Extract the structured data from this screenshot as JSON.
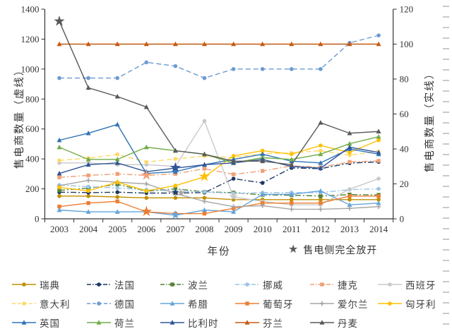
{
  "axes": {
    "x": {
      "label": "年份",
      "ticks": [
        2003,
        2004,
        2005,
        2006,
        2007,
        2008,
        2009,
        2010,
        2011,
        2012,
        2013,
        2014
      ]
    },
    "y_left": {
      "label": "售电商数量（虚线）",
      "min": 0,
      "max": 1400,
      "ticks": [
        0,
        200,
        400,
        600,
        800,
        1000,
        1200,
        1400
      ]
    },
    "y_right": {
      "label": "售电商数量（实线）",
      "min": 0,
      "max": 120,
      "ticks": [
        0,
        20,
        40,
        60,
        80,
        100,
        120
      ]
    }
  },
  "star_legend": {
    "symbol": "★",
    "label": "售电侧完全放开",
    "color": "#595959"
  },
  "chart_data": {
    "type": "line",
    "x": [
      2003,
      2004,
      2005,
      2006,
      2007,
      2008,
      2009,
      2010,
      2011,
      2012,
      2013,
      2014
    ],
    "note": "dashed series read on left axis (0-1400), solid series on right axis (0-120); stars mark year of full retail market opening",
    "series": [
      {
        "name": "瑞典",
        "color": "#BF8F00",
        "axis": "right",
        "line": "solid",
        "marker": "circle",
        "values": [
          13,
          13,
          12.5,
          12,
          12,
          12,
          11,
          11,
          11,
          11,
          11,
          11
        ]
      },
      {
        "name": "法国",
        "color": "#1F3864",
        "axis": "left",
        "line": "dashdot",
        "marker": "circle",
        "values": [
          178,
          175,
          178,
          172,
          172,
          175,
          268,
          240,
          340,
          335,
          372,
          380
        ],
        "star_year": 2007,
        "star_size": 14
      },
      {
        "name": "波兰",
        "color": "#538135",
        "axis": "left",
        "line": "dashdot",
        "marker": "square",
        "values": [
          190,
          205,
          230,
          185,
          200,
          180,
          175,
          160,
          158,
          152,
          162,
          160
        ]
      },
      {
        "name": "挪威",
        "color": "#9DC3E6",
        "axis": "left",
        "line": "dashdot",
        "marker": "circle",
        "values": [
          225,
          215,
          205,
          195,
          185,
          180,
          170,
          175,
          175,
          175,
          195,
          200
        ]
      },
      {
        "name": "捷克",
        "color": "#F1A077",
        "axis": "left",
        "line": "dashdot",
        "marker": "square",
        "values": [
          277,
          290,
          300,
          290,
          300,
          335,
          297,
          320,
          354,
          344,
          380,
          387
        ],
        "star_year": 2006,
        "star_size": 20
      },
      {
        "name": "西班牙",
        "color": "#C9C9C9",
        "axis": "right",
        "line": "solid",
        "marker": "circle",
        "values": [
          32,
          32,
          31,
          31,
          30,
          56,
          12.5,
          10,
          8,
          8,
          17,
          23
        ],
        "star_year": 2009,
        "star_size": 16
      },
      {
        "name": "意大利",
        "color": "#FFD966",
        "axis": "left",
        "line": "dash",
        "marker": "circle",
        "values": [
          390,
          405,
          430,
          380,
          400,
          420,
          410,
          435,
          440,
          455,
          425,
          450
        ]
      },
      {
        "name": "德国",
        "color": "#6B9BD2",
        "axis": "left",
        "line": "dash",
        "marker": "circle",
        "values": [
          940,
          940,
          940,
          1045,
          1020,
          940,
          1000,
          1000,
          1000,
          1000,
          1175,
          1225
        ]
      },
      {
        "name": "希腊",
        "color": "#63A5DC",
        "axis": "right",
        "line": "solid",
        "marker": "triangle",
        "values": [
          5,
          4,
          4,
          4,
          2,
          5,
          4,
          14,
          14,
          16,
          8,
          9
        ],
        "star_year": 2007,
        "star_size": 16
      },
      {
        "name": "葡萄牙",
        "color": "#ED7D31",
        "axis": "right",
        "line": "solid",
        "marker": "square",
        "values": [
          7,
          9,
          10,
          4,
          3,
          3,
          6,
          9,
          9,
          9,
          13,
          13
        ],
        "star_year": 2006,
        "star_size": 20
      },
      {
        "name": "爱尔兰",
        "color": "#A6A6A6",
        "axis": "right",
        "line": "solid",
        "marker": "plus",
        "values": [
          19,
          22,
          21,
          20,
          14.5,
          10,
          7,
          7.5,
          5.5,
          5.5,
          6,
          7
        ],
        "star_year": 2007,
        "star_size": 14,
        "star_dx": 8
      },
      {
        "name": "匈牙利",
        "color": "#FFC000",
        "axis": "right",
        "line": "solid",
        "marker": "circle",
        "values": [
          18,
          16,
          21,
          16,
          19,
          24,
          36,
          39,
          37,
          42,
          38,
          45
        ],
        "star_year": 2008,
        "star_size": 20
      },
      {
        "name": "英国",
        "color": "#2E74B5",
        "axis": "right",
        "line": "solid",
        "marker": "triangle",
        "values": [
          45,
          49,
          54,
          26,
          27,
          31,
          34,
          37,
          33,
          32,
          40,
          37
        ]
      },
      {
        "name": "荷兰",
        "color": "#70AD47",
        "axis": "right",
        "line": "solid",
        "marker": "triangle",
        "values": [
          41,
          34,
          34,
          41,
          39,
          37,
          32,
          35,
          34,
          37,
          43,
          47
        ]
      },
      {
        "name": "比利时",
        "color": "#2F5597",
        "axis": "right",
        "line": "solid",
        "marker": "triangle",
        "values": [
          26,
          31,
          32,
          27,
          29,
          31,
          32,
          34,
          30,
          29,
          41,
          38
        ],
        "star_year": 2007,
        "star_size": 20
      },
      {
        "name": "芬兰",
        "color": "#C55A11",
        "axis": "right",
        "line": "solid",
        "marker": "triangle",
        "values": [
          100,
          100,
          100,
          100,
          100,
          100,
          100,
          100,
          100,
          100,
          100,
          100
        ]
      },
      {
        "name": "丹麦",
        "color": "#595959",
        "axis": "right",
        "line": "solid",
        "marker": "triangle",
        "values": [
          113,
          75,
          70,
          64,
          39,
          37,
          33,
          33,
          31,
          55,
          49,
          50
        ],
        "star_year": 2003,
        "star_size": 20
      }
    ]
  }
}
